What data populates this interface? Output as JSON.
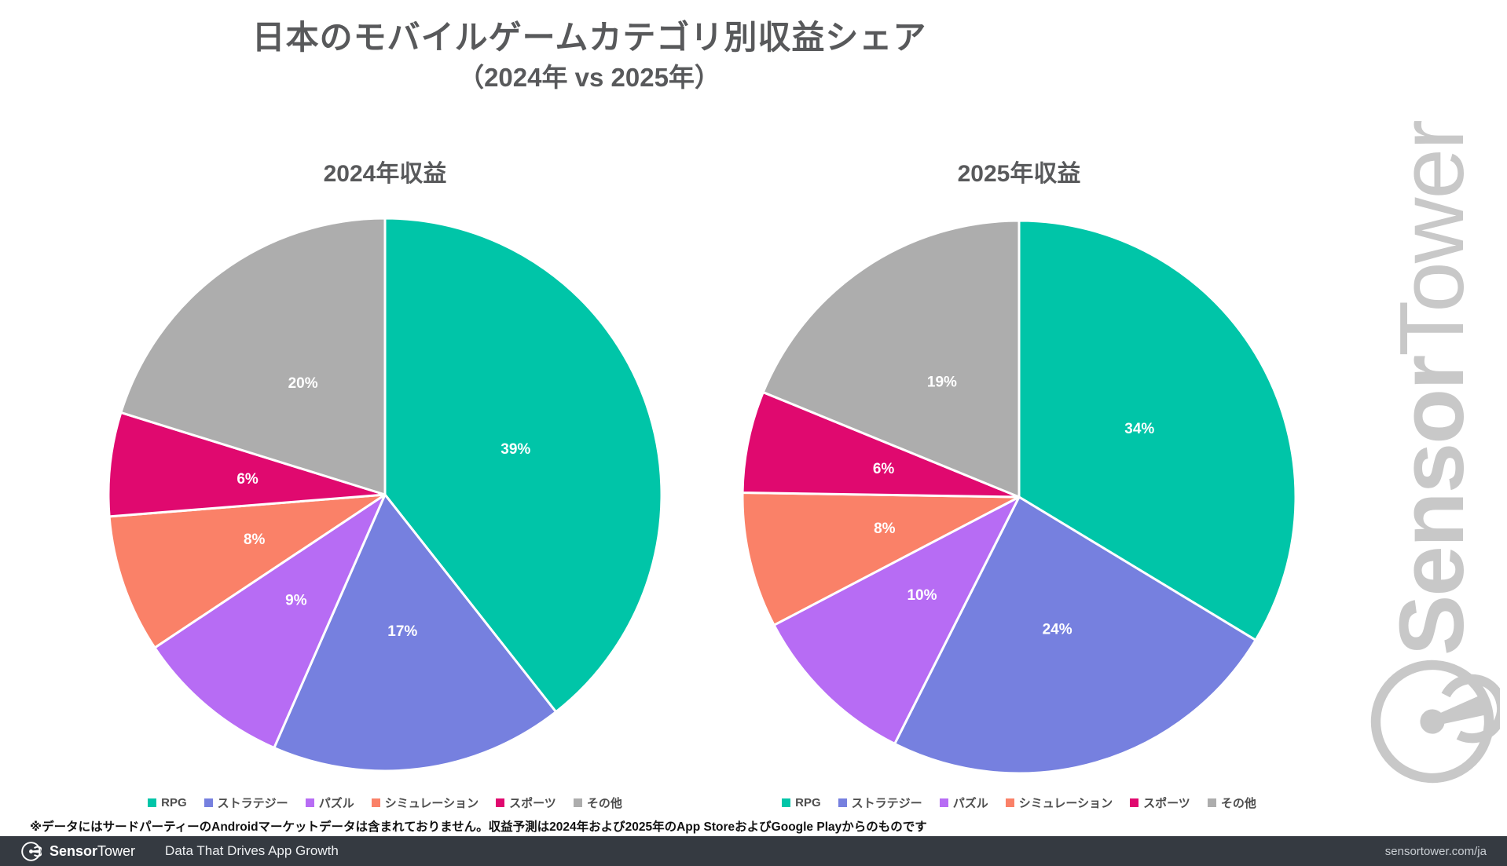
{
  "page": {
    "title": "日本のモバイルゲームカテゴリ別収益シェア",
    "subtitle": "（2024年 vs 2025年）",
    "footnote": "※データにはサードパーティーのAndroidマーケットデータは含まれておりません。収益予測は2024年および2025年のApp StoreおよびGoogle Playからのものです"
  },
  "watermark": {
    "brand_bold": "Sensor",
    "brand_light": "Tower",
    "color": "#c8c8c8"
  },
  "footer": {
    "brand_bold": "Sensor",
    "brand_light": "Tower",
    "tagline": "Data That Drives App Growth",
    "url": "sensortower.com/ja",
    "background": "#353a41"
  },
  "chart_data": [
    {
      "type": "pie",
      "title": "2024年収益",
      "categories": [
        "RPG",
        "ストラテジー",
        "パズル",
        "シミュレーション",
        "スポーツ",
        "その他"
      ],
      "values": [
        39,
        17,
        9,
        8,
        6,
        20
      ],
      "labels": [
        "39%",
        "17%",
        "9%",
        "8%",
        "6%",
        "20%"
      ],
      "colors": [
        "#00c5a8",
        "#7680df",
        "#b76cf4",
        "#fa8168",
        "#e0096f",
        "#adadad"
      ],
      "start_angle_deg": 0,
      "direction": "clockwise",
      "slice_label_color": "#ffffff",
      "slice_border_color": "#ffffff",
      "legend_position": "bottom"
    },
    {
      "type": "pie",
      "title": "2025年収益",
      "categories": [
        "RPG",
        "ストラテジー",
        "パズル",
        "シミュレーション",
        "スポーツ",
        "その他"
      ],
      "values": [
        34,
        24,
        10,
        8,
        6,
        19
      ],
      "labels": [
        "34%",
        "24%",
        "10%",
        "8%",
        "6%",
        "19%"
      ],
      "colors": [
        "#00c5a8",
        "#7680df",
        "#b76cf4",
        "#fa8168",
        "#e0096f",
        "#adadad"
      ],
      "start_angle_deg": 0,
      "direction": "clockwise",
      "slice_label_color": "#ffffff",
      "slice_border_color": "#ffffff",
      "legend_position": "bottom"
    }
  ]
}
